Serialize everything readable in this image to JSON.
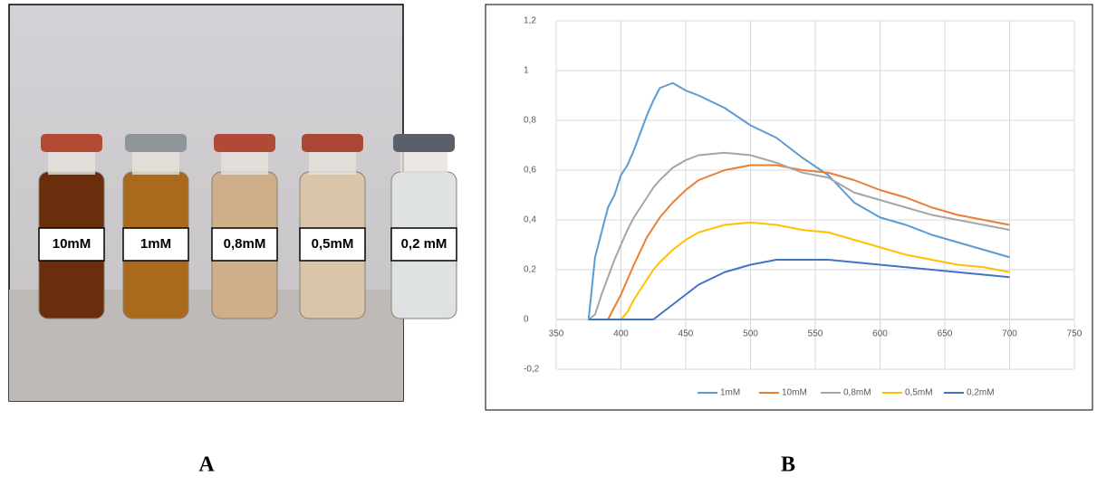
{
  "photo": {
    "labels": [
      "10mM",
      "1mM",
      "0,8mM",
      "0,5mM",
      "0,2 mM"
    ]
  },
  "panels": [
    "A",
    "B"
  ],
  "chart_data": {
    "type": "line",
    "x": [
      375,
      380,
      385,
      390,
      395,
      400,
      405,
      410,
      420,
      425,
      430,
      440,
      450,
      460,
      480,
      500,
      520,
      540,
      560,
      580,
      600,
      620,
      640,
      660,
      680,
      700
    ],
    "series": [
      {
        "name": "1mM",
        "color": "#5b9bd5",
        "values": [
          0,
          0.25,
          0.35,
          0.45,
          0.5,
          0.58,
          0.62,
          0.68,
          0.82,
          0.88,
          0.93,
          0.95,
          0.92,
          0.9,
          0.85,
          0.78,
          0.73,
          0.65,
          0.58,
          0.47,
          0.41,
          0.38,
          0.34,
          0.31,
          0.28,
          0.25
        ]
      },
      {
        "name": "10mM",
        "color": "#ed7d31",
        "values": [
          0,
          0,
          0,
          0,
          0.05,
          0.1,
          0.16,
          0.22,
          0.33,
          0.37,
          0.41,
          0.47,
          0.52,
          0.56,
          0.6,
          0.62,
          0.62,
          0.6,
          0.59,
          0.56,
          0.52,
          0.49,
          0.45,
          0.42,
          0.4,
          0.38
        ]
      },
      {
        "name": "0,8mM",
        "color": "#a5a5a5",
        "values": [
          0,
          0.02,
          0.1,
          0.17,
          0.24,
          0.3,
          0.36,
          0.41,
          0.49,
          0.53,
          0.56,
          0.61,
          0.64,
          0.66,
          0.67,
          0.66,
          0.63,
          0.59,
          0.57,
          0.51,
          0.48,
          0.45,
          0.42,
          0.4,
          0.38,
          0.36
        ]
      },
      {
        "name": "0,5mM",
        "color": "#ffc000",
        "values": [
          0,
          0,
          0,
          0,
          0,
          0,
          0.03,
          0.08,
          0.16,
          0.2,
          0.23,
          0.28,
          0.32,
          0.35,
          0.38,
          0.39,
          0.38,
          0.36,
          0.35,
          0.32,
          0.29,
          0.26,
          0.24,
          0.22,
          0.21,
          0.19
        ]
      },
      {
        "name": "0,2mM",
        "color": "#4472c4",
        "values": [
          0,
          0,
          0,
          0,
          0,
          0,
          0,
          0,
          0,
          0,
          0.02,
          0.06,
          0.1,
          0.14,
          0.19,
          0.22,
          0.24,
          0.24,
          0.24,
          0.23,
          0.22,
          0.21,
          0.2,
          0.19,
          0.18,
          0.17
        ]
      }
    ],
    "xlim": [
      350,
      750
    ],
    "xticks": [
      350,
      400,
      450,
      500,
      550,
      600,
      650,
      700,
      750
    ],
    "ylim": [
      -0.2,
      1.2
    ],
    "yticks": [
      {
        "value": -0.2,
        "label": "-0,2"
      },
      0,
      {
        "value": 0.2,
        "label": "0,2"
      },
      {
        "value": 0.4,
        "label": "0,4"
      },
      {
        "value": 0.6,
        "label": "0,6"
      },
      {
        "value": 0.8,
        "label": "0,8"
      },
      1,
      {
        "value": 1.2,
        "label": "1,2"
      }
    ],
    "grid": true,
    "legend": "bottom"
  }
}
